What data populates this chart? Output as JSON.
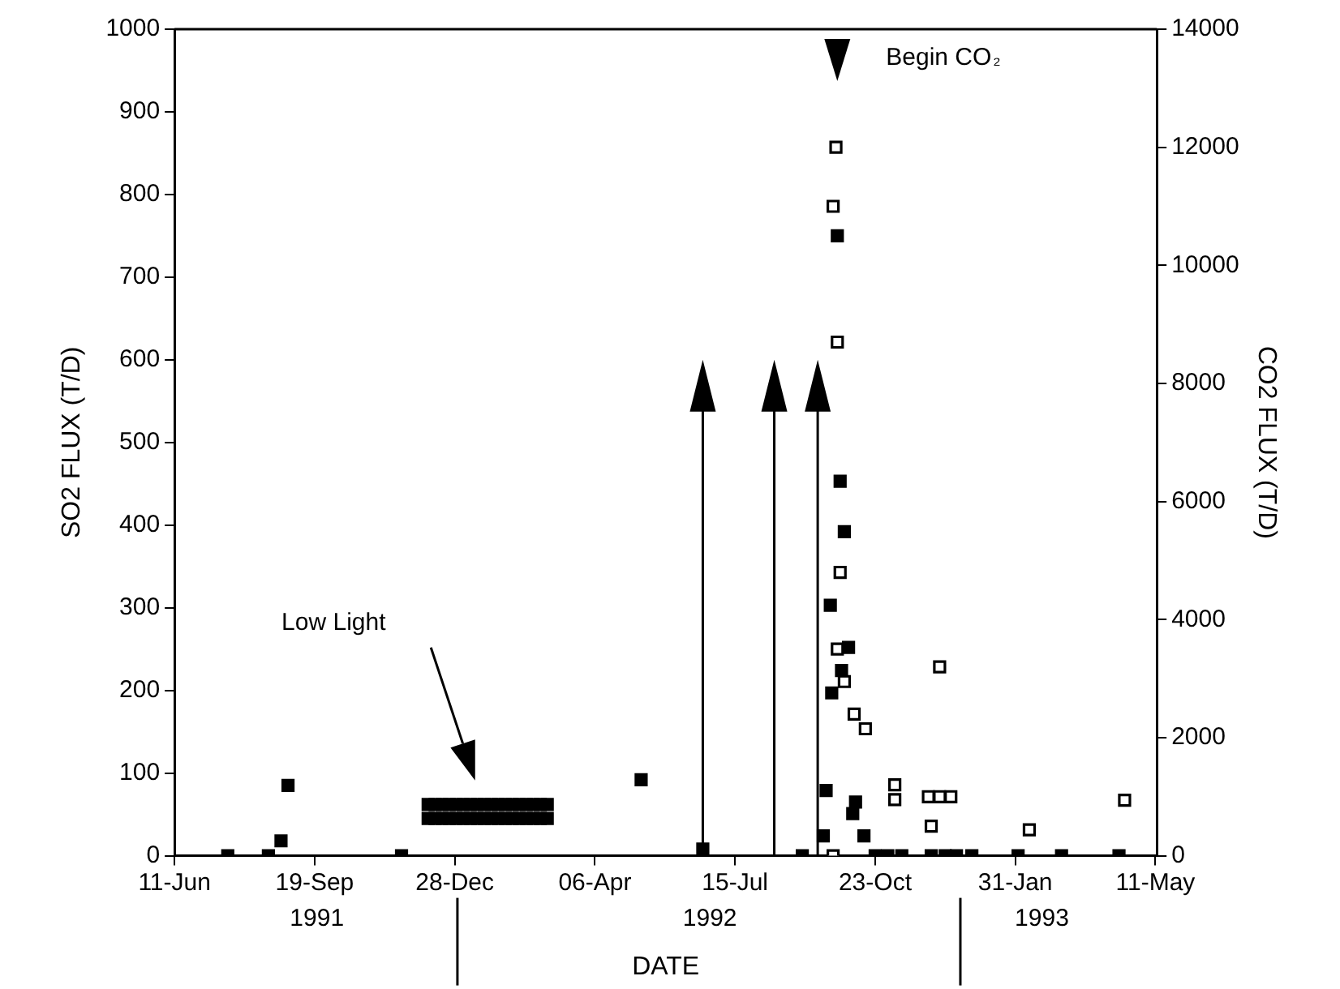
{
  "chart_data": {
    "type": "scatter",
    "xlabel": "DATE",
    "ylabel": "SO2 FLUX (T/D)",
    "y2label": "CO2 FLUX (T/D)",
    "xlim": [
      "1991-06-11",
      "1993-05-12"
    ],
    "xticks": [
      {
        "value": "1991-06-11",
        "label": "11-Jun"
      },
      {
        "value": "1991-09-19",
        "label": "19-Sep"
      },
      {
        "value": "1991-12-28",
        "label": "28-Dec"
      },
      {
        "value": "1992-04-06",
        "label": "06-Apr"
      },
      {
        "value": "1992-07-15",
        "label": "15-Jul"
      },
      {
        "value": "1992-10-23",
        "label": "23-Oct"
      },
      {
        "value": "1993-01-31",
        "label": "31-Jan"
      },
      {
        "value": "1993-05-11",
        "label": "11-May"
      }
    ],
    "ylim": [
      0,
      1000
    ],
    "yticks": [
      0,
      100,
      200,
      300,
      400,
      500,
      600,
      700,
      800,
      900,
      1000
    ],
    "y2lim": [
      0,
      14000
    ],
    "y2ticks": [
      0,
      2000,
      4000,
      6000,
      8000,
      10000,
      12000,
      14000
    ],
    "grid": false,
    "legend": false,
    "marker": "square",
    "series": [
      {
        "color": "#000000",
        "x": [
          "1991-07-19",
          "1991-08-17",
          "1991-08-26",
          "1991-08-31",
          "1991-11-20",
          "1991-12-09",
          "1991-12-14",
          "1991-12-19",
          "1991-12-24",
          "1991-12-29",
          "1992-01-03",
          "1992-01-08",
          "1992-01-13",
          "1992-01-18",
          "1992-01-23",
          "1992-01-28",
          "1992-02-02",
          "1992-02-07",
          "1992-02-12",
          "1992-02-17",
          "1992-02-22",
          "1992-02-27",
          "1992-03-03",
          "1991-12-09",
          "1991-12-14",
          "1991-12-19",
          "1991-12-24",
          "1991-12-29",
          "1992-01-03",
          "1992-01-08",
          "1992-01-13",
          "1992-01-18",
          "1992-01-23",
          "1992-01-28",
          "1992-02-02",
          "1992-02-07",
          "1992-02-12",
          "1992-02-17",
          "1992-02-22",
          "1992-02-27",
          "1992-03-03",
          "1992-05-09",
          "1992-06-22",
          "1992-09-01",
          "1992-09-16",
          "1992-09-18",
          "1992-09-21",
          "1992-09-22",
          "1992-09-26",
          "1992-09-28",
          "1992-09-29",
          "1992-10-01",
          "1992-10-04",
          "1992-10-07",
          "1992-10-09",
          "1992-10-15",
          "1992-10-23",
          "1992-11-01",
          "1992-11-11",
          "1992-12-02",
          "1992-12-12",
          "1992-12-20",
          "1992-12-31",
          "1993-02-02",
          "1993-03-05",
          "1993-04-15"
        ],
        "values": [
          0,
          0,
          18,
          85,
          0,
          45,
          45,
          45,
          45,
          45,
          45,
          45,
          45,
          45,
          45,
          45,
          45,
          45,
          45,
          45,
          45,
          45,
          45,
          62,
          62,
          62,
          62,
          62,
          62,
          62,
          62,
          62,
          62,
          62,
          62,
          62,
          62,
          62,
          62,
          62,
          62,
          92,
          8,
          0,
          24,
          79,
          303,
          197,
          750,
          453,
          224,
          392,
          252,
          51,
          65,
          24,
          0,
          0,
          0,
          0,
          0,
          0,
          0,
          0,
          0,
          0
        ]
      },
      {
        "color": "#000000",
        "axis": "y2",
        "x": [
          "1992-09-23",
          "1992-09-23",
          "1992-09-25",
          "1992-09-26",
          "1992-09-26",
          "1992-09-28",
          "1992-10-01",
          "1992-10-08",
          "1992-10-16",
          "1992-11-06",
          "1992-11-06",
          "1992-11-30",
          "1992-12-02",
          "1992-12-08",
          "1992-12-08",
          "1992-12-16",
          "1993-02-10",
          "1993-04-19"
        ],
        "values": [
          0,
          11000,
          12000,
          8700,
          3500,
          4800,
          2950,
          2400,
          2150,
          1200,
          950,
          1000,
          500,
          1000,
          3200,
          1000,
          440,
          940
        ]
      }
    ],
    "ref_lines": [
      {
        "axis": "x",
        "value": "1992-06-22"
      },
      {
        "axis": "x",
        "value": "1992-08-12"
      },
      {
        "axis": "x",
        "value": "1992-09-12"
      }
    ],
    "annotations": [
      {
        "text": "Begin CO₂",
        "x": "1992-09-26"
      },
      "Low Light",
      "1991",
      "1992",
      "1993"
    ]
  }
}
